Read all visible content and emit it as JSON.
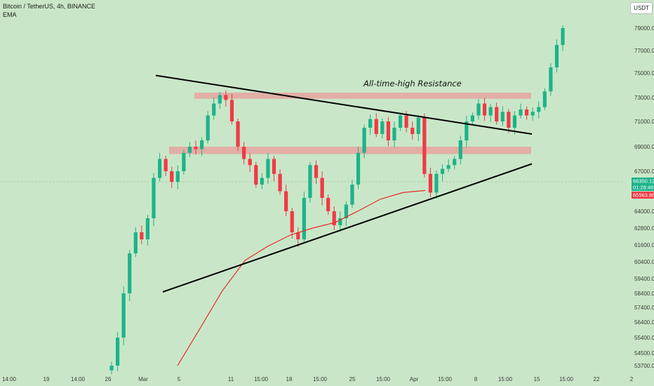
{
  "header": {
    "symbol_line": "Bitcoin / TetherUS, 4h, BINANCE",
    "indicator": "EMA",
    "currency_button": "USDT"
  },
  "colors": {
    "background": "#c9e7c8",
    "up_candle": "#1db38a",
    "down_candle": "#ef3a45",
    "ema_line": "#e52b2b",
    "zone_fill": "#e6a3a0",
    "trendline": "#000000"
  },
  "chart_data": {
    "type": "candlestick",
    "title": "Bitcoin / TetherUS, 4h, BINANCE",
    "x_tick_labels": [
      "14:00",
      "19",
      "14:00",
      "26",
      "Mar",
      "5",
      "11",
      "15:00",
      "18",
      "15:00",
      "25",
      "15:00",
      "Apr",
      "15:00",
      "8",
      "15:00",
      "15",
      "15:00",
      "22",
      "2"
    ],
    "y_tick_labels": [
      "79000.00",
      "77000.00",
      "75000.00",
      "73000.00",
      "71000.00",
      "69000.00",
      "67000.00",
      "64000.00",
      "62800.00",
      "61600.00",
      "60400.00",
      "59400.00",
      "58400.00",
      "57400.00",
      "56400.00",
      "55400.00",
      "54500.00",
      "53700.00"
    ],
    "price_tags": [
      {
        "value": "66350.12",
        "color": "#1db38a"
      },
      {
        "value": "01:28:48",
        "color": "#1db38a"
      },
      {
        "value": "65563.86",
        "color": "#ef3a45"
      }
    ],
    "annotations": [
      "All-time-high Resistance"
    ],
    "levels": {
      "resistance_zone": [
        72900,
        73400
      ],
      "support_zone": [
        68400,
        69000
      ],
      "current_price": 66350.12,
      "ema_value": 65563.86
    },
    "trendlines": [
      {
        "name": "descending",
        "from": {
          "date": "Mar 3",
          "price": 74800
        },
        "to": {
          "date": "Apr 15",
          "price": 70000
        }
      },
      {
        "name": "ascending",
        "from": {
          "date": "Mar 3",
          "price": 58500
        },
        "to": {
          "date": "Apr 15",
          "price": 67600
        }
      }
    ],
    "series": [
      {
        "name": "price",
        "type": "candlestick",
        "approx_closes": [
          53700,
          55400,
          58400,
          61000,
          62500,
          62000,
          63500,
          66500,
          68000,
          67000,
          66200,
          67000,
          68500,
          69000,
          68800,
          69500,
          71500,
          72500,
          73200,
          72800,
          71000,
          69000,
          68000,
          67500,
          66000,
          66500,
          68000,
          66800,
          65500,
          64000,
          62500,
          62000,
          65000,
          67500,
          66500,
          65000,
          64000,
          63000,
          63500,
          64500,
          66000,
          68500,
          70500,
          71200,
          70000,
          71000,
          69500,
          70500,
          71500,
          70500,
          70000,
          71300,
          66800,
          65400,
          66800,
          67200,
          67500,
          68000,
          69500,
          71000,
          71500,
          72500,
          71500,
          72200,
          71000,
          71800,
          70500,
          71500,
          72000,
          71500,
          71800,
          72200,
          73500,
          75500,
          77500,
          79000
        ]
      },
      {
        "name": "EMA",
        "type": "line",
        "approx_values": [
          53700,
          56000,
          58600,
          60500,
          61500,
          62300,
          62800,
          63200,
          64000,
          64900,
          65400,
          65560
        ]
      }
    ]
  }
}
